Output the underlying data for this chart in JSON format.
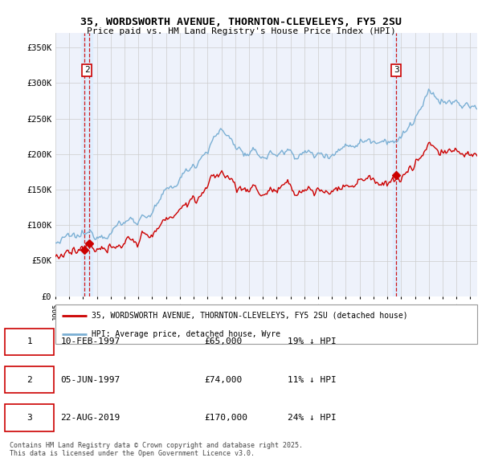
{
  "title1": "35, WORDSWORTH AVENUE, THORNTON-CLEVELEYS, FY5 2SU",
  "title2": "Price paid vs. HM Land Registry's House Price Index (HPI)",
  "ylabel_ticks": [
    "£0",
    "£50K",
    "£100K",
    "£150K",
    "£200K",
    "£250K",
    "£300K",
    "£350K"
  ],
  "ytick_values": [
    0,
    50000,
    100000,
    150000,
    200000,
    250000,
    300000,
    350000
  ],
  "ylim": [
    0,
    370000
  ],
  "xlim_start": 1995.0,
  "xlim_end": 2025.5,
  "sale_points": [
    {
      "date": 1997.11,
      "price": 65000,
      "label": "1"
    },
    {
      "date": 1997.43,
      "price": 74000,
      "label": "2"
    },
    {
      "date": 2019.64,
      "price": 170000,
      "label": "3"
    }
  ],
  "sale_vlines": [
    1997.11,
    1997.43,
    2019.64
  ],
  "label_positions": [
    {
      "date": 1997.27,
      "label": "2",
      "y": 318000
    },
    {
      "date": 2019.64,
      "label": "3",
      "y": 318000
    }
  ],
  "legend_entries": [
    "35, WORDSWORTH AVENUE, THORNTON-CLEVELEYS, FY5 2SU (detached house)",
    "HPI: Average price, detached house, Wyre"
  ],
  "table_rows": [
    {
      "num": "1",
      "date": "10-FEB-1997",
      "price": "£65,000",
      "pct": "19% ↓ HPI"
    },
    {
      "num": "2",
      "date": "05-JUN-1997",
      "price": "£74,000",
      "pct": "11% ↓ HPI"
    },
    {
      "num": "3",
      "date": "22-AUG-2019",
      "price": "£170,000",
      "pct": "24% ↓ HPI"
    }
  ],
  "footnote": "Contains HM Land Registry data © Crown copyright and database right 2025.\nThis data is licensed under the Open Government Licence v3.0.",
  "price_line_color": "#cc0000",
  "hpi_line_color": "#7aafd4",
  "vline_color": "#cc0000",
  "vline_bg_color": "#ddeeff",
  "background_color": "#eef2fb",
  "grid_color": "#cccccc",
  "fig_bg": "#ffffff"
}
